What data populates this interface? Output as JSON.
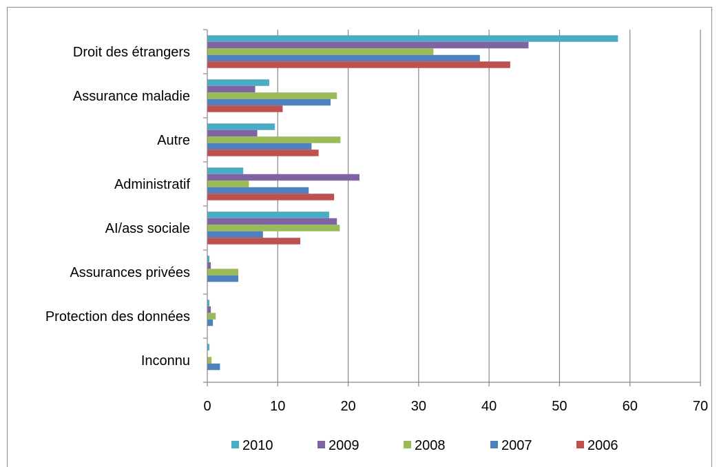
{
  "chart_data": {
    "type": "bar",
    "orientation": "horizontal",
    "categories": [
      "Droit des étrangers",
      "Assurance maladie",
      "Autre",
      "Administratif",
      "AI/ass sociale",
      "Assurances privées",
      "Protection des données",
      "Inconnu"
    ],
    "series": [
      {
        "name": "2010",
        "color": "#4BACC6",
        "values": [
          58.3,
          8.8,
          9.6,
          5.1,
          17.3,
          0.3,
          0.3,
          0.3
        ]
      },
      {
        "name": "2009",
        "color": "#8064A2",
        "values": [
          45.6,
          6.8,
          7.1,
          21.6,
          18.4,
          0.5,
          0.5,
          0
        ]
      },
      {
        "name": "2008",
        "color": "#9BBB59",
        "values": [
          32.1,
          18.4,
          18.9,
          5.9,
          18.8,
          4.4,
          1.2,
          0.6
        ]
      },
      {
        "name": "2007",
        "color": "#4F81BD",
        "values": [
          38.7,
          17.5,
          14.8,
          14.4,
          7.9,
          4.4,
          0.8,
          1.8
        ]
      },
      {
        "name": "2006",
        "color": "#C0504D",
        "values": [
          43.0,
          10.7,
          15.8,
          18.0,
          13.2,
          0,
          0,
          0
        ]
      }
    ],
    "xlim": [
      0,
      70
    ],
    "xticks": [
      "0",
      "10",
      "20",
      "30",
      "40",
      "50",
      "60",
      "70"
    ],
    "grid": true,
    "legend_position": "bottom",
    "title": "",
    "xlabel": "",
    "ylabel": ""
  }
}
